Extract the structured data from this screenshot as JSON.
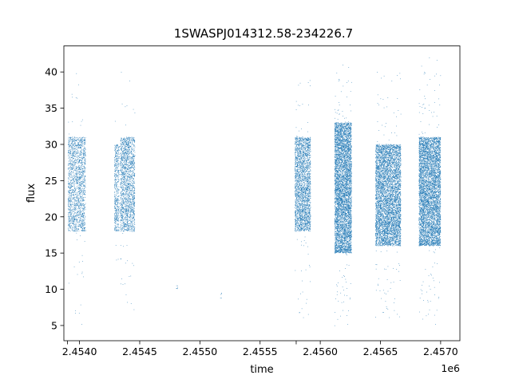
{
  "chart_data": {
    "type": "scatter",
    "title": "1SWASPJ014312.58-234226.7",
    "xlabel": "time",
    "ylabel": "flux",
    "x_offset_label": "1e6",
    "xlim": [
      2453870,
      2457160
    ],
    "ylim": [
      2.9,
      43.6
    ],
    "x_ticks": [
      2453900,
      2454000,
      2454500,
      2455000,
      2455500,
      2455800,
      2456000,
      2456500,
      2457000
    ],
    "x_tick_labels": [
      "",
      "2.4540",
      "2.4545",
      "2.4550",
      "2.4555",
      "",
      "2.4560",
      "2.4565",
      "2.4570"
    ],
    "y_ticks": [
      5,
      10,
      15,
      20,
      25,
      30,
      35,
      40
    ],
    "y_tick_labels": [
      "5",
      "10",
      "15",
      "20",
      "25",
      "30",
      "35",
      "40"
    ],
    "grid": false,
    "legend": "none",
    "point_color": "#1f77b4",
    "series": [
      {
        "clusters": [
          {
            "x_range": [
              2453905,
              2454050
            ],
            "y_core": [
              18,
              31
            ],
            "y_extent": [
              5,
              41
            ],
            "points": 1800
          },
          {
            "x_range": [
              2454290,
              2454330
            ],
            "y_core": [
              18,
              30
            ],
            "y_extent": [
              13,
              35
            ],
            "points": 500
          },
          {
            "x_range": [
              2454340,
              2454460
            ],
            "y_core": [
              18,
              31
            ],
            "y_extent": [
              7,
              40
            ],
            "points": 1800
          },
          {
            "x_range": [
              2454805,
              2454815
            ],
            "y_core": [
              10,
              10.5
            ],
            "y_extent": [
              10,
              10.5
            ],
            "points": 6
          },
          {
            "x_range": [
              2455170,
              2455180
            ],
            "y_core": [
              8.5,
              9.8
            ],
            "y_extent": [
              8.5,
              9.8
            ],
            "points": 5
          },
          {
            "x_range": [
              2455790,
              2455920
            ],
            "y_core": [
              18,
              31
            ],
            "y_extent": [
              6,
              39
            ],
            "points": 2600
          },
          {
            "x_range": [
              2456120,
              2456260
            ],
            "y_core": [
              15,
              33
            ],
            "y_extent": [
              4.8,
              41
            ],
            "points": 5500
          },
          {
            "x_range": [
              2456460,
              2456670
            ],
            "y_core": [
              16,
              30
            ],
            "y_extent": [
              6,
              40
            ],
            "points": 5500
          },
          {
            "x_range": [
              2456820,
              2457000
            ],
            "y_core": [
              16,
              31
            ],
            "y_extent": [
              4.8,
              42
            ],
            "points": 5500
          }
        ]
      }
    ]
  }
}
